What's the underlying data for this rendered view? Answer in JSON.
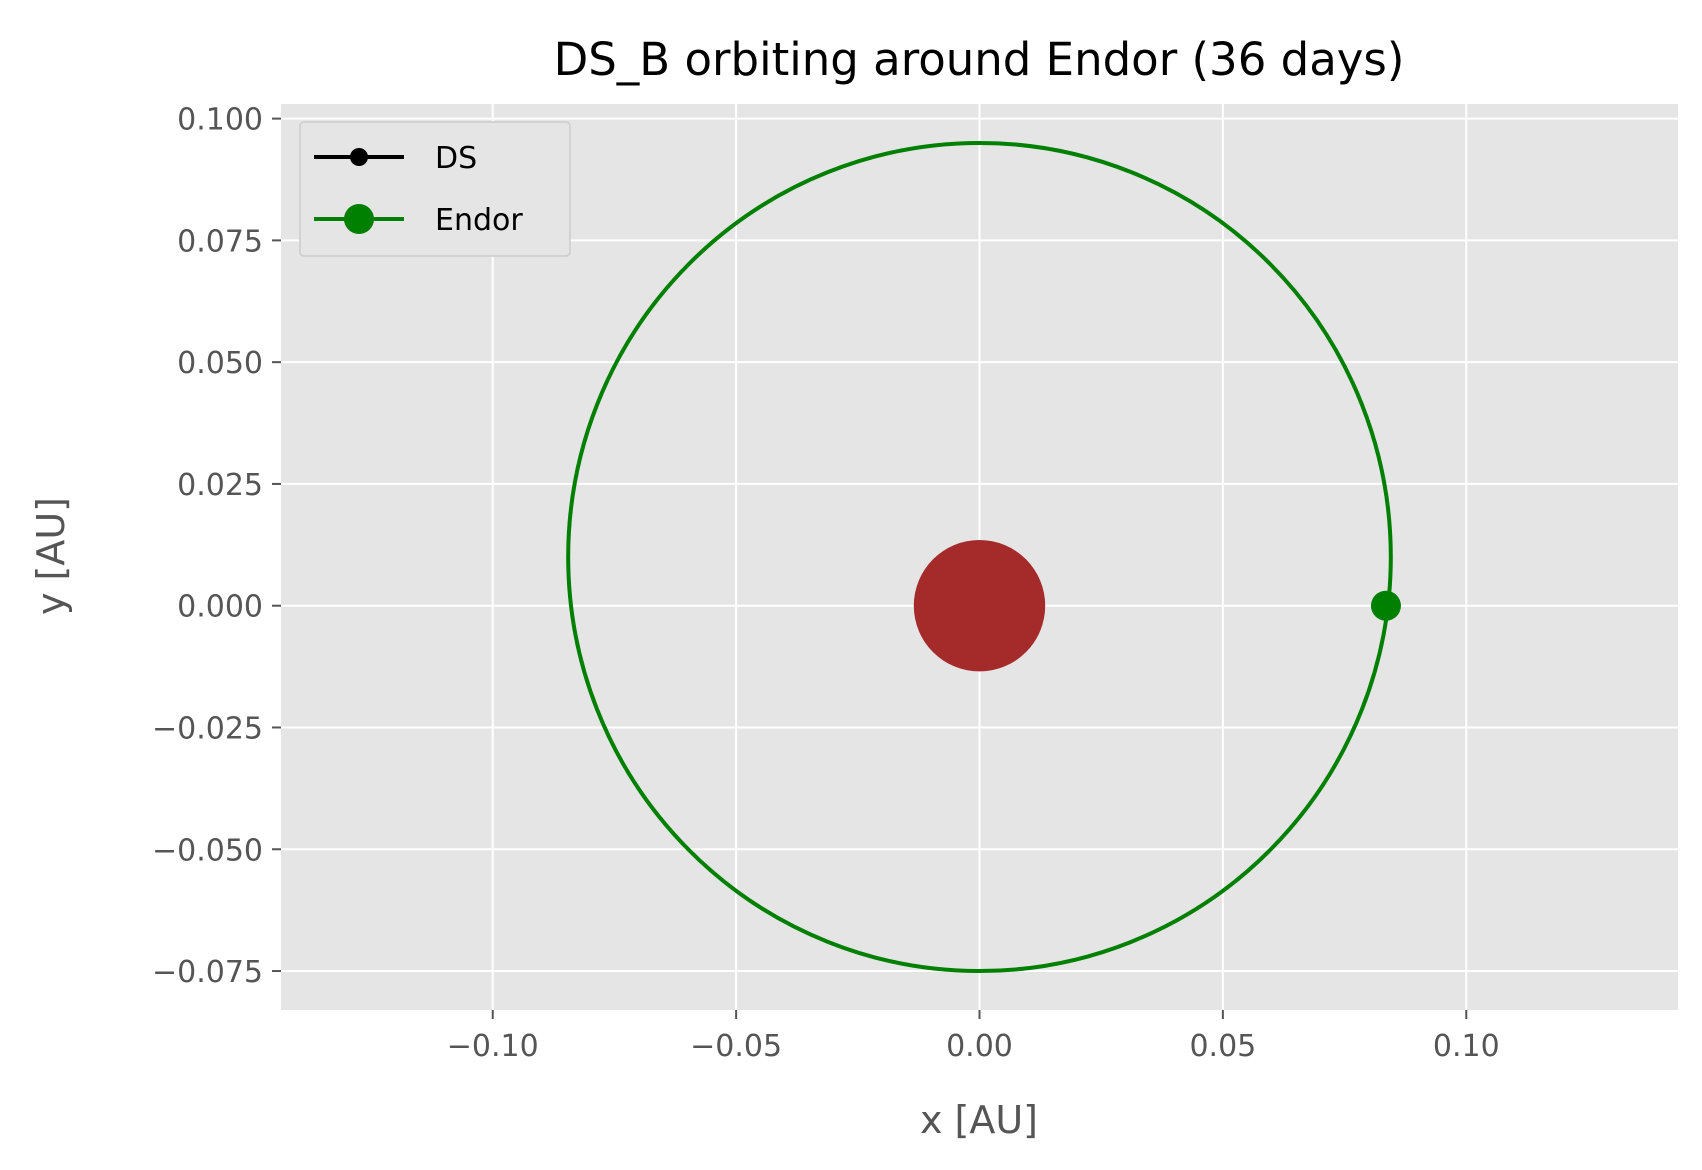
{
  "chart_data": {
    "type": "line",
    "title": "DS_B orbiting around Endor (36 days)",
    "xlabel": "x [AU]",
    "ylabel": "y [AU]",
    "xlim": [
      -0.1435,
      0.1435
    ],
    "ylim": [
      -0.083,
      0.103
    ],
    "xticks": [
      -0.1,
      -0.05,
      0.0,
      0.05,
      0.1
    ],
    "xtick_labels": [
      "−0.10",
      "−0.05",
      "0.00",
      "0.05",
      "0.10"
    ],
    "yticks": [
      0.1,
      0.075,
      0.05,
      0.025,
      0.0,
      -0.025,
      -0.05,
      -0.075
    ],
    "ytick_labels": [
      "0.100",
      "0.075",
      "0.050",
      "0.025",
      "0.000",
      "−0.025",
      "−0.050",
      "−0.075"
    ],
    "grid": true,
    "legend_position": "top-left",
    "style": {
      "background": "#e5e5e5",
      "grid_color": "#ffffff",
      "orbit_color": "#008000",
      "central_body_color": "#a52a2a"
    },
    "orbit": {
      "center": [
        0.0,
        0.01
      ],
      "semi_axis_x": 0.0845,
      "semi_axis_y": 0.085
    },
    "central_body": {
      "x": 0.0,
      "y": 0.0,
      "radius": 0.0135
    },
    "series": [
      {
        "name": "DS",
        "color": "#000000",
        "marker": "o",
        "points": []
      },
      {
        "name": "Endor",
        "color": "#008000",
        "marker": "o",
        "points": [
          [
            0.0835,
            0.0
          ]
        ]
      }
    ]
  }
}
